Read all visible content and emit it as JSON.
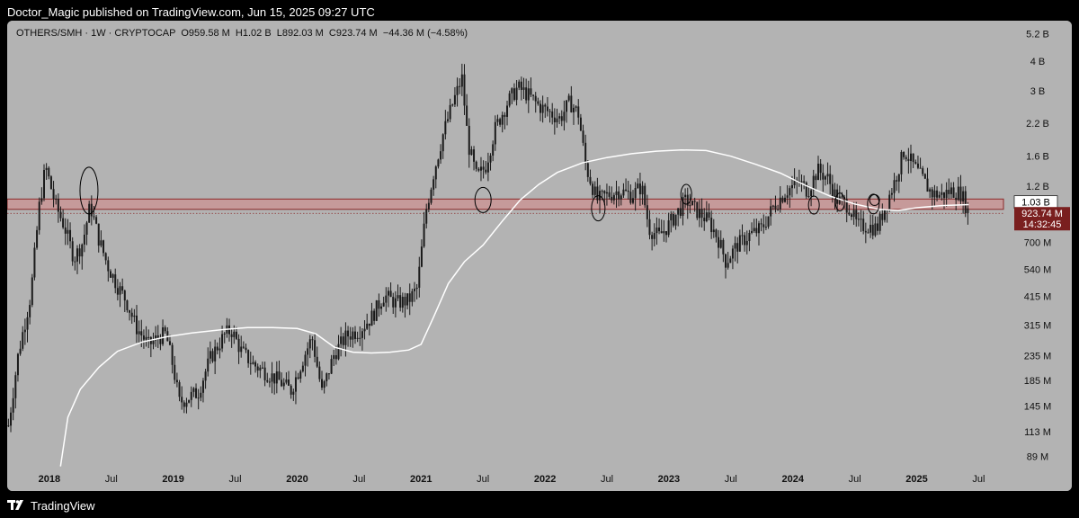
{
  "header": {
    "published": "Doctor_Magic published on TradingView.com, Jun 15, 2025 09:27 UTC"
  },
  "legend": {
    "symbol": "OTHERS/SMH · 1W · CRYPTOCAP",
    "open": "O959.58 M",
    "high": "H1.02 B",
    "low": "L892.03 M",
    "close": "C923.74 M",
    "change": "−44.36 M (−4.58%)"
  },
  "footer": {
    "brand": "TradingView",
    "logo_icon": "tradingview-logo-icon"
  },
  "colors": {
    "background": "#b3b3b3",
    "candle": "#1a1a1a",
    "ma_line": "#ffffff",
    "zone_fill": "#c69a9a",
    "zone_stroke": "#8b2a2a",
    "price_badge": "#7a1f1f"
  },
  "chart_data": {
    "type": "candlestick",
    "scale": "log",
    "ylim": [
      80000000,
      5500000000
    ],
    "y_ticks": [
      {
        "label": "5.2 B",
        "value": 5200000000
      },
      {
        "label": "4 B",
        "value": 4000000000
      },
      {
        "label": "3 B",
        "value": 3000000000
      },
      {
        "label": "2.2 B",
        "value": 2200000000
      },
      {
        "label": "1.6 B",
        "value": 1600000000
      },
      {
        "label": "1.2 B",
        "value": 1200000000
      },
      {
        "label": "700 M",
        "value": 700000000
      },
      {
        "label": "540 M",
        "value": 540000000
      },
      {
        "label": "415 M",
        "value": 415000000
      },
      {
        "label": "315 M",
        "value": 315000000
      },
      {
        "label": "235 M",
        "value": 235000000
      },
      {
        "label": "185 M",
        "value": 185000000
      },
      {
        "label": "145 M",
        "value": 145000000
      },
      {
        "label": "113 M",
        "value": 113000000
      },
      {
        "label": "89 M",
        "value": 89000000
      }
    ],
    "x_ticks": [
      {
        "label": "2018",
        "date": 2018.0,
        "bold": true
      },
      {
        "label": "Jul",
        "date": 2018.5,
        "bold": false
      },
      {
        "label": "2019",
        "date": 2019.0,
        "bold": true
      },
      {
        "label": "Jul",
        "date": 2019.5,
        "bold": false
      },
      {
        "label": "2020",
        "date": 2020.0,
        "bold": true
      },
      {
        "label": "Jul",
        "date": 2020.5,
        "bold": false
      },
      {
        "label": "2021",
        "date": 2021.0,
        "bold": true
      },
      {
        "label": "Jul",
        "date": 2021.5,
        "bold": false
      },
      {
        "label": "2022",
        "date": 2022.0,
        "bold": true
      },
      {
        "label": "Jul",
        "date": 2022.5,
        "bold": false
      },
      {
        "label": "2023",
        "date": 2023.0,
        "bold": true
      },
      {
        "label": "Jul",
        "date": 2023.5,
        "bold": false
      },
      {
        "label": "2024",
        "date": 2024.0,
        "bold": true
      },
      {
        "label": "Jul",
        "date": 2024.5,
        "bold": false
      },
      {
        "label": "2025",
        "date": 2025.0,
        "bold": true
      },
      {
        "label": "Jul",
        "date": 2025.5,
        "bold": false
      }
    ],
    "xlim": [
      2017.66,
      2025.7
    ],
    "price_path": [
      [
        2017.67,
        120000000
      ],
      [
        2017.75,
        240000000
      ],
      [
        2017.85,
        420000000
      ],
      [
        2017.92,
        1000000000
      ],
      [
        2017.97,
        1450000000
      ],
      [
        2018.05,
        1000000000
      ],
      [
        2018.12,
        820000000
      ],
      [
        2018.2,
        600000000
      ],
      [
        2018.27,
        700000000
      ],
      [
        2018.33,
        1000000000
      ],
      [
        2018.4,
        720000000
      ],
      [
        2018.47,
        560000000
      ],
      [
        2018.55,
        460000000
      ],
      [
        2018.62,
        400000000
      ],
      [
        2018.7,
        310000000
      ],
      [
        2018.8,
        260000000
      ],
      [
        2018.88,
        280000000
      ],
      [
        2018.94,
        290000000
      ],
      [
        2019.0,
        210000000
      ],
      [
        2019.05,
        150000000
      ],
      [
        2019.1,
        155000000
      ],
      [
        2019.2,
        165000000
      ],
      [
        2019.3,
        230000000
      ],
      [
        2019.42,
        290000000
      ],
      [
        2019.47,
        300000000
      ],
      [
        2019.55,
        245000000
      ],
      [
        2019.65,
        215000000
      ],
      [
        2019.75,
        200000000
      ],
      [
        2019.85,
        185000000
      ],
      [
        2019.95,
        168000000
      ],
      [
        2020.05,
        230000000
      ],
      [
        2020.12,
        280000000
      ],
      [
        2020.2,
        165000000
      ],
      [
        2020.3,
        240000000
      ],
      [
        2020.4,
        285000000
      ],
      [
        2020.5,
        300000000
      ],
      [
        2020.6,
        340000000
      ],
      [
        2020.7,
        420000000
      ],
      [
        2020.8,
        390000000
      ],
      [
        2020.9,
        400000000
      ],
      [
        2020.97,
        450000000
      ],
      [
        2021.04,
        950000000
      ],
      [
        2021.1,
        1350000000
      ],
      [
        2021.18,
        2000000000
      ],
      [
        2021.26,
        2700000000
      ],
      [
        2021.33,
        3400000000
      ],
      [
        2021.38,
        1800000000
      ],
      [
        2021.45,
        1300000000
      ],
      [
        2021.52,
        1450000000
      ],
      [
        2021.6,
        2100000000
      ],
      [
        2021.7,
        2700000000
      ],
      [
        2021.78,
        3100000000
      ],
      [
        2021.86,
        2900000000
      ],
      [
        2021.95,
        2600000000
      ],
      [
        2022.03,
        2450000000
      ],
      [
        2022.12,
        2300000000
      ],
      [
        2022.2,
        2700000000
      ],
      [
        2022.27,
        2400000000
      ],
      [
        2022.33,
        1450000000
      ],
      [
        2022.42,
        1050000000
      ],
      [
        2022.5,
        1100000000
      ],
      [
        2022.6,
        1150000000
      ],
      [
        2022.7,
        1100000000
      ],
      [
        2022.78,
        1200000000
      ],
      [
        2022.84,
        800000000
      ],
      [
        2022.92,
        740000000
      ],
      [
        2023.0,
        830000000
      ],
      [
        2023.08,
        950000000
      ],
      [
        2023.14,
        1050000000
      ],
      [
        2023.22,
        950000000
      ],
      [
        2023.32,
        860000000
      ],
      [
        2023.4,
        720000000
      ],
      [
        2023.46,
        580000000
      ],
      [
        2023.55,
        680000000
      ],
      [
        2023.65,
        750000000
      ],
      [
        2023.75,
        800000000
      ],
      [
        2023.85,
        1000000000
      ],
      [
        2023.95,
        1150000000
      ],
      [
        2024.05,
        1250000000
      ],
      [
        2024.12,
        1150000000
      ],
      [
        2024.2,
        1400000000
      ],
      [
        2024.28,
        1300000000
      ],
      [
        2024.36,
        1050000000
      ],
      [
        2024.45,
        1000000000
      ],
      [
        2024.52,
        820000000
      ],
      [
        2024.6,
        820000000
      ],
      [
        2024.68,
        800000000
      ],
      [
        2024.75,
        1000000000
      ],
      [
        2024.82,
        1250000000
      ],
      [
        2024.9,
        1700000000
      ],
      [
        2024.96,
        1500000000
      ],
      [
        2025.04,
        1300000000
      ],
      [
        2025.12,
        1120000000
      ],
      [
        2025.2,
        1100000000
      ],
      [
        2025.28,
        1150000000
      ],
      [
        2025.36,
        1120000000
      ],
      [
        2025.42,
        923740000
      ]
    ],
    "moving_average": [
      [
        2018.09,
        81000000
      ],
      [
        2018.15,
        130000000
      ],
      [
        2018.25,
        170000000
      ],
      [
        2018.4,
        210000000
      ],
      [
        2018.55,
        245000000
      ],
      [
        2018.75,
        268000000
      ],
      [
        2018.95,
        282000000
      ],
      [
        2019.15,
        292000000
      ],
      [
        2019.4,
        302000000
      ],
      [
        2019.6,
        308000000
      ],
      [
        2019.8,
        308000000
      ],
      [
        2020.0,
        305000000
      ],
      [
        2020.15,
        290000000
      ],
      [
        2020.3,
        255000000
      ],
      [
        2020.45,
        243000000
      ],
      [
        2020.6,
        241000000
      ],
      [
        2020.75,
        243000000
      ],
      [
        2020.9,
        248000000
      ],
      [
        2021.0,
        262000000
      ],
      [
        2021.1,
        340000000
      ],
      [
        2021.22,
        470000000
      ],
      [
        2021.35,
        580000000
      ],
      [
        2021.5,
        680000000
      ],
      [
        2021.65,
        850000000
      ],
      [
        2021.8,
        1050000000
      ],
      [
        2021.95,
        1220000000
      ],
      [
        2022.1,
        1370000000
      ],
      [
        2022.3,
        1500000000
      ],
      [
        2022.5,
        1580000000
      ],
      [
        2022.7,
        1640000000
      ],
      [
        2022.9,
        1680000000
      ],
      [
        2023.1,
        1700000000
      ],
      [
        2023.3,
        1690000000
      ],
      [
        2023.5,
        1600000000
      ],
      [
        2023.7,
        1480000000
      ],
      [
        2023.9,
        1360000000
      ],
      [
        2024.1,
        1210000000
      ],
      [
        2024.3,
        1090000000
      ],
      [
        2024.5,
        1010000000
      ],
      [
        2024.7,
        960000000
      ],
      [
        2024.85,
        950000000
      ],
      [
        2025.0,
        975000000
      ],
      [
        2025.2,
        995000000
      ],
      [
        2025.42,
        1005000000
      ]
    ],
    "support_zone": {
      "from": 960000000,
      "to": 1060000000
    },
    "annotations": [
      "circle",
      "circle",
      "circle",
      "circle",
      "circle",
      "circle",
      "circle",
      "circle"
    ],
    "price_line": {
      "value": 923740000
    },
    "current_price_label": "923.74 M",
    "countdown_label": "14:32:45",
    "zone_label": "1.03 B",
    "zone_label_value": 1030000000
  }
}
